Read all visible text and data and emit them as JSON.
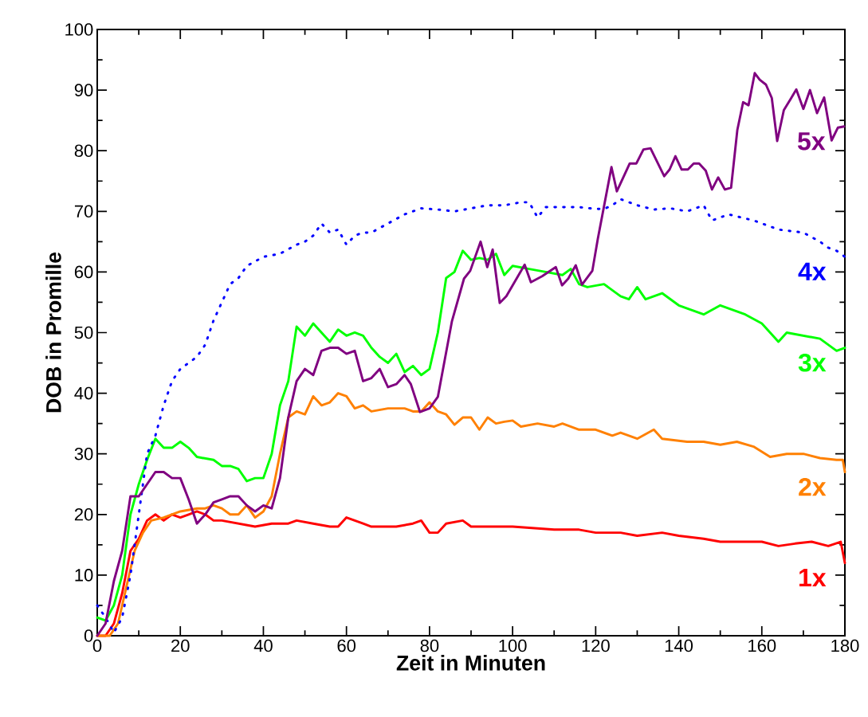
{
  "chart_data": {
    "type": "line",
    "xlabel": "Zeit in Minuten",
    "ylabel": "DOB in Promille",
    "xlim": [
      0,
      180
    ],
    "ylim": [
      0,
      100
    ],
    "xticks": [
      0,
      20,
      40,
      60,
      80,
      100,
      120,
      140,
      160,
      180
    ],
    "yticks": [
      0,
      10,
      20,
      30,
      40,
      50,
      60,
      70,
      80,
      90,
      100
    ],
    "series": [
      {
        "name": "1x",
        "color": "#ff0000",
        "line_style": "solid",
        "x": [
          0,
          2,
          4,
          6,
          8,
          10,
          12,
          14,
          16,
          18,
          20,
          22,
          24,
          26,
          28,
          30,
          34,
          38,
          42,
          46,
          48,
          52,
          56,
          58,
          60,
          64,
          66,
          72,
          76,
          78,
          80,
          82,
          84,
          88,
          90,
          96,
          100,
          110,
          116,
          120,
          126,
          130,
          136,
          140,
          146,
          150,
          156,
          160,
          164,
          168,
          172,
          176,
          179,
          180
        ],
        "values": [
          0,
          0,
          2,
          7,
          14,
          16,
          19,
          20,
          19,
          20,
          19.5,
          20,
          20.5,
          20,
          19,
          19,
          18.5,
          18,
          18.5,
          18.5,
          19,
          18.5,
          18,
          18,
          19.5,
          18.5,
          18,
          18,
          18.5,
          19,
          17,
          17,
          18.5,
          19,
          18,
          18,
          18,
          17.5,
          17.5,
          17,
          17,
          16.5,
          17,
          16.5,
          16,
          15.5,
          15.5,
          15.5,
          14.8,
          15.2,
          15.5,
          14.8,
          15.5,
          12
        ]
      },
      {
        "name": "2x",
        "color": "#ff8000",
        "line_style": "solid",
        "x": [
          0,
          3,
          5,
          7,
          9,
          11,
          13,
          16,
          20,
          24,
          26,
          28,
          30,
          32,
          34,
          36,
          38,
          40,
          42,
          44,
          46,
          48,
          50,
          52,
          54,
          56,
          58,
          60,
          62,
          64,
          66,
          70,
          74,
          76,
          78,
          80,
          82,
          84,
          86,
          88,
          90,
          92,
          94,
          96,
          98,
          100,
          102,
          106,
          110,
          112,
          116,
          120,
          124,
          126,
          130,
          134,
          136,
          142,
          146,
          150,
          154,
          158,
          162,
          166,
          170,
          174,
          178,
          179.5,
          180
        ],
        "values": [
          0,
          0,
          2,
          8,
          14,
          17,
          19,
          19.5,
          20.5,
          21,
          21,
          21.5,
          21,
          20,
          20,
          21.5,
          19.5,
          20.5,
          23,
          30,
          36,
          37,
          36.5,
          39.5,
          38,
          38.5,
          40,
          39.5,
          37.5,
          38,
          37,
          37.5,
          37.5,
          37,
          37,
          38.5,
          37,
          36.5,
          34.8,
          36,
          36,
          34,
          36,
          35,
          35.3,
          35.5,
          34.5,
          35,
          34.5,
          35,
          34,
          34,
          33,
          33.5,
          32.5,
          34,
          32.5,
          32,
          32,
          31.5,
          32,
          31.2,
          29.5,
          30,
          30,
          29.3,
          29,
          29,
          27
        ]
      },
      {
        "name": "3x",
        "color": "#00ff00",
        "line_style": "solid",
        "x": [
          0,
          2,
          4,
          6,
          8,
          10,
          12,
          14,
          16,
          18,
          20,
          22,
          24,
          28,
          30,
          32,
          34,
          36,
          38,
          40,
          42,
          44,
          46,
          48,
          50,
          52,
          54,
          56,
          58,
          60,
          62,
          64,
          66,
          68,
          70,
          72,
          74,
          76,
          78,
          80,
          82,
          84,
          86,
          88,
          90,
          92,
          94,
          96,
          98,
          100,
          104,
          108,
          112,
          114,
          116,
          118,
          122,
          126,
          128,
          130,
          132,
          134,
          136,
          140,
          142,
          146,
          150,
          156,
          160,
          164,
          166,
          170,
          174,
          178,
          180
        ],
        "values": [
          3,
          2.5,
          5,
          10,
          20,
          25,
          29,
          32.5,
          31,
          31,
          32,
          31,
          29.5,
          29,
          28,
          28,
          27.5,
          25.5,
          26,
          26,
          30,
          38,
          42,
          51,
          49.5,
          51.5,
          50,
          48.5,
          50.5,
          49.5,
          50,
          49.5,
          47.5,
          46,
          45,
          46.5,
          43.5,
          44.5,
          43,
          44,
          50,
          59,
          60,
          63.5,
          62,
          62.3,
          62,
          63,
          59.5,
          61,
          60.5,
          60,
          59.5,
          60.5,
          58,
          57.5,
          58,
          56,
          55.5,
          57.5,
          55.5,
          56,
          56.5,
          54.5,
          54,
          53,
          54.5,
          53,
          51.5,
          48.5,
          50,
          49.5,
          49,
          47,
          47.5
        ]
      },
      {
        "name": "4x",
        "color": "#0000ff",
        "line_style": "dotted",
        "x": [
          0,
          2,
          4,
          6,
          8,
          10,
          12,
          14,
          16,
          18,
          20,
          24,
          26,
          28,
          30,
          32,
          34,
          36,
          40,
          44,
          48,
          50,
          52,
          54,
          56,
          58,
          60,
          62,
          64,
          66,
          70,
          74,
          78,
          82,
          86,
          90,
          94,
          98,
          102,
          104,
          106,
          108,
          112,
          116,
          120,
          122,
          124,
          126,
          130,
          134,
          138,
          142,
          144,
          146,
          148,
          152,
          158,
          164,
          170,
          174,
          176,
          178,
          180
        ],
        "values": [
          5,
          3,
          0.5,
          3,
          10,
          20,
          30,
          33,
          38,
          42,
          44,
          46,
          48,
          52,
          55,
          58,
          59,
          61,
          62.5,
          63,
          64.5,
          65,
          66,
          68,
          66.5,
          67,
          64.5,
          66,
          66.5,
          66.5,
          68,
          69.5,
          70.5,
          70.3,
          70,
          70.5,
          71,
          71,
          71.5,
          71.5,
          69,
          70.7,
          70.7,
          70.7,
          70.4,
          70.4,
          71,
          72,
          71,
          70.3,
          70.5,
          70,
          70.5,
          71,
          68.5,
          69.5,
          68.5,
          67,
          66.5,
          65,
          64,
          63.5,
          62.5
        ]
      },
      {
        "name": "5x",
        "color": "#800080",
        "line_style": "solid",
        "x": [
          0,
          2,
          4,
          6,
          8,
          10,
          12,
          14,
          16,
          18,
          20,
          22,
          24,
          26,
          28,
          30,
          32,
          34,
          36,
          38,
          40,
          42,
          44,
          46,
          48,
          50,
          52,
          54,
          56,
          58,
          60,
          62,
          64,
          66,
          68,
          70,
          72,
          74,
          75.5,
          77.7,
          80,
          82,
          85.4,
          88.3,
          89.8,
          92.3,
          93.9,
          95.2,
          96.9,
          98.5,
          102.9,
          104.4,
          107.1,
          110.4,
          111.9,
          113.4,
          115.2,
          116.7,
          119.2,
          120.5,
          123.8,
          125.1,
          128.2,
          129.8,
          131.5,
          133.2,
          136.5,
          137.8,
          139.2,
          140.7,
          142.2,
          143.6,
          144.9,
          146.5,
          148,
          149.5,
          151.1,
          152.6,
          154.1,
          155.5,
          156.8,
          158.3,
          159.5,
          161,
          162.4,
          163.7,
          165.3,
          167,
          168.3,
          170,
          171.6,
          173.3,
          175,
          176.8,
          178.3,
          179.8
        ],
        "values": [
          0,
          2,
          9,
          14,
          23,
          23,
          25,
          27,
          27,
          26,
          26,
          22.5,
          18.5,
          20,
          22,
          22.5,
          23,
          23,
          21.5,
          20.5,
          21.5,
          21,
          26,
          36,
          42,
          44,
          43,
          47,
          47.5,
          47.5,
          46.5,
          47,
          42,
          42.5,
          44,
          41,
          41.5,
          43,
          41.5,
          36.9,
          37.5,
          39.4,
          51.9,
          58.9,
          60.2,
          65,
          60.8,
          63.7,
          54.9,
          56,
          61.2,
          58.3,
          59.3,
          60.8,
          57.8,
          58.9,
          61.1,
          57.9,
          60.2,
          65.4,
          77.3,
          73.3,
          77.9,
          77.9,
          80.2,
          80.4,
          75.8,
          76.9,
          79.1,
          76.9,
          76.9,
          77.9,
          77.9,
          76.7,
          73.6,
          75.6,
          73.6,
          73.9,
          83.4,
          88,
          87.5,
          92.8,
          91.7,
          90.9,
          88.7,
          81.6,
          86.7,
          88.6,
          90.1,
          86.9,
          90,
          86.2,
          88.8,
          81.7,
          83.8,
          84
        ]
      }
    ]
  }
}
